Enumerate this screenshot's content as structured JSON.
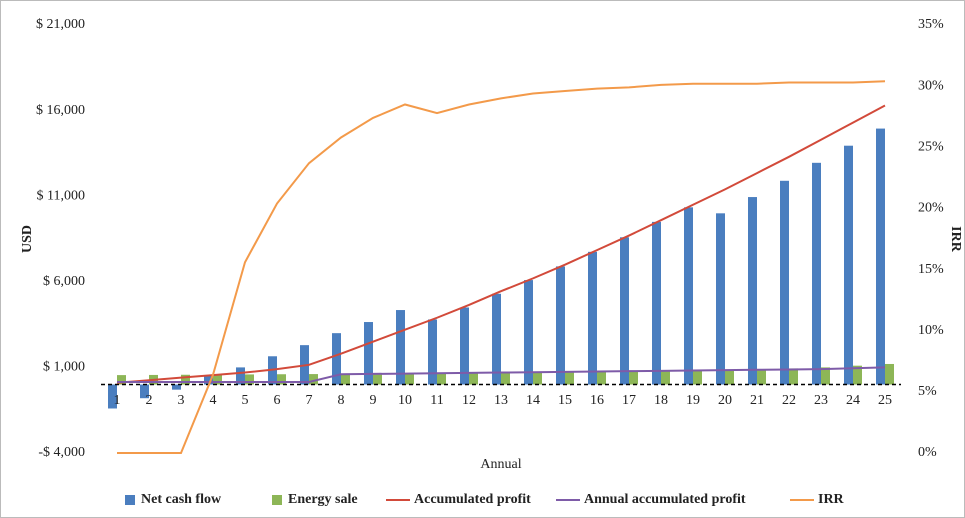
{
  "chart_data": {
    "type": "bar",
    "x_label": "Annual",
    "y_label": "USD",
    "y2_label": "IRR",
    "categories": [
      "1",
      "2",
      "3",
      "4",
      "5",
      "6",
      "7",
      "8",
      "9",
      "10",
      "11",
      "12",
      "13",
      "14",
      "15",
      "16",
      "17",
      "18",
      "19",
      "20",
      "21",
      "22",
      "23",
      "24",
      "25"
    ],
    "series": [
      {
        "name": "Net cash flow",
        "type": "bar",
        "color": "#4a7ebf",
        "values": [
          -1400,
          -800,
          -300,
          500,
          1000,
          1650,
          2300,
          3000,
          3650,
          4350,
          3800,
          4500,
          5300,
          6100,
          6900,
          7750,
          8600,
          9500,
          10350,
          10000,
          10950,
          11900,
          12950,
          13950,
          14950
        ]
      },
      {
        "name": "Energy sale",
        "type": "bar",
        "color": "#8db657",
        "values": [
          550,
          560,
          570,
          580,
          590,
          600,
          610,
          620,
          630,
          640,
          650,
          670,
          690,
          710,
          730,
          750,
          780,
          810,
          840,
          870,
          900,
          940,
          1000,
          1100,
          1200
        ]
      },
      {
        "name": "Accumulated profit",
        "type": "line",
        "color": "#d24a3a",
        "values": [
          100,
          250,
          400,
          550,
          700,
          900,
          1150,
          1800,
          2500,
          3200,
          3900,
          4650,
          5450,
          6200,
          7000,
          7850,
          8700,
          9600,
          10500,
          11400,
          12350,
          13300,
          14300,
          15300,
          16300
        ]
      },
      {
        "name": "Annual accumulated profit",
        "type": "line",
        "color": "#7e5ba8",
        "values": [
          150,
          150,
          150,
          150,
          150,
          150,
          150,
          600,
          620,
          640,
          660,
          680,
          700,
          720,
          740,
          760,
          780,
          800,
          820,
          840,
          860,
          880,
          900,
          950,
          1000
        ]
      },
      {
        "name": "IRR",
        "type": "line",
        "axis": "y2",
        "color": "#f39a4a",
        "values": [
          0,
          0,
          0,
          6.4,
          15.6,
          20.4,
          23.7,
          25.8,
          27.4,
          28.5,
          27.8,
          28.5,
          29.0,
          29.4,
          29.6,
          29.8,
          29.9,
          30.1,
          30.2,
          30.2,
          30.2,
          30.3,
          30.3,
          30.3,
          30.4
        ]
      }
    ],
    "ylim": [
      -4000,
      21000
    ],
    "yticks": [
      {
        "value": -4000,
        "label": "-$ 4,000"
      },
      {
        "value": 1000,
        "label": "$ 1,000"
      },
      {
        "value": 6000,
        "label": "$ 6,000"
      },
      {
        "value": 11000,
        "label": "$ 11,000"
      },
      {
        "value": 16000,
        "label": "$ 16,000"
      },
      {
        "value": 21000,
        "label": "$ 21,000"
      }
    ],
    "y2lim": [
      0,
      35
    ],
    "y2ticks": [
      {
        "value": 0,
        "label": "0%"
      },
      {
        "value": 5,
        "label": "5%"
      },
      {
        "value": 10,
        "label": "10%"
      },
      {
        "value": 15,
        "label": "15%"
      },
      {
        "value": 20,
        "label": "20%"
      },
      {
        "value": 25,
        "label": "25%"
      },
      {
        "value": 30,
        "label": "30%"
      },
      {
        "value": 35,
        "label": "35%"
      }
    ],
    "legend": "bottom"
  }
}
